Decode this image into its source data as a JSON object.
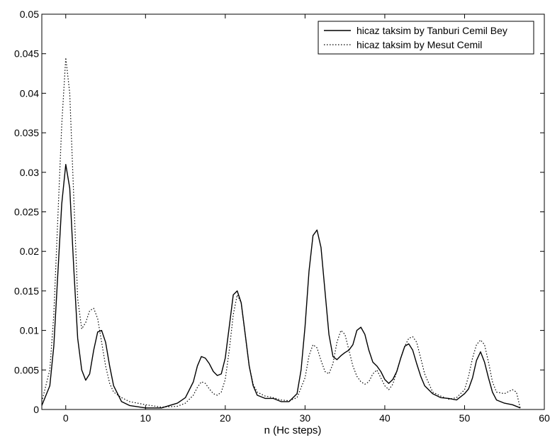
{
  "chart_data": {
    "type": "line",
    "title": "",
    "xlabel": "n (Hc steps)",
    "ylabel": "",
    "xlim": [
      -3,
      60
    ],
    "ylim": [
      0,
      0.05
    ],
    "x_ticks": [
      0,
      10,
      20,
      30,
      40,
      50,
      60
    ],
    "x_tick_labels": [
      "0",
      "10",
      "20",
      "30",
      "40",
      "50",
      "60"
    ],
    "y_ticks": [
      0,
      0.005,
      0.01,
      0.015,
      0.02,
      0.025,
      0.03,
      0.035,
      0.04,
      0.045,
      0.05
    ],
    "y_tick_labels": [
      "0",
      "0.005",
      "0.01",
      "0.015",
      "0.02",
      "0.025",
      "0.03",
      "0.035",
      "0.04",
      "0.045",
      "0.05"
    ],
    "grid": false,
    "legend_position": "top-right",
    "series": [
      {
        "name": "hicaz taksim by Tanburi Cemil Bey",
        "style": "solid",
        "color": "#000000",
        "x": [
          -3,
          -2,
          -1.5,
          -1,
          -0.5,
          0,
          0.5,
          1,
          1.5,
          2,
          2.5,
          3,
          3.5,
          4,
          4.5,
          5,
          5.5,
          6,
          7,
          8,
          10,
          12,
          14,
          15,
          16,
          16.5,
          17,
          17.5,
          18,
          18.5,
          19,
          19.5,
          20,
          20.5,
          21,
          21.5,
          22,
          22.5,
          23,
          23.5,
          24,
          25,
          26,
          27,
          28,
          29,
          29.5,
          30,
          30.5,
          31,
          31.5,
          32,
          32.5,
          33,
          33.5,
          34,
          34.5,
          35,
          35.5,
          36,
          36.5,
          37,
          37.5,
          38,
          38.5,
          39,
          39.5,
          40,
          40.5,
          41,
          41.5,
          42,
          42.5,
          43,
          43.5,
          44,
          44.5,
          45,
          46,
          47,
          48,
          49,
          50,
          50.5,
          51,
          51.5,
          52,
          52.5,
          53,
          53.5,
          54,
          55,
          56,
          57
        ],
        "y": [
          0.0005,
          0.003,
          0.008,
          0.017,
          0.026,
          0.031,
          0.028,
          0.018,
          0.009,
          0.005,
          0.0037,
          0.0045,
          0.0075,
          0.0098,
          0.01,
          0.0085,
          0.0055,
          0.003,
          0.001,
          0.0005,
          0.0002,
          0.0002,
          0.0008,
          0.0015,
          0.0035,
          0.0055,
          0.0067,
          0.0065,
          0.0058,
          0.0048,
          0.0043,
          0.0045,
          0.0065,
          0.0105,
          0.0145,
          0.015,
          0.0135,
          0.0095,
          0.0055,
          0.003,
          0.0018,
          0.0014,
          0.0014,
          0.001,
          0.001,
          0.002,
          0.005,
          0.0105,
          0.0175,
          0.022,
          0.0227,
          0.0205,
          0.015,
          0.0095,
          0.0067,
          0.0063,
          0.0068,
          0.0072,
          0.0075,
          0.0082,
          0.01,
          0.0104,
          0.0095,
          0.0075,
          0.006,
          0.0055,
          0.0048,
          0.0038,
          0.0033,
          0.0038,
          0.0048,
          0.0065,
          0.008,
          0.0083,
          0.0075,
          0.0058,
          0.0042,
          0.003,
          0.002,
          0.0015,
          0.0014,
          0.0012,
          0.002,
          0.0026,
          0.004,
          0.0062,
          0.0073,
          0.006,
          0.004,
          0.0022,
          0.0012,
          0.0008,
          0.0006,
          0.0002
        ]
      },
      {
        "name": "hicaz taksim by Mesut Cemil",
        "style": "dotted",
        "color": "#000000",
        "x": [
          -3,
          -2,
          -1.5,
          -1,
          -0.5,
          0,
          0.5,
          1,
          1.5,
          2,
          2.5,
          3,
          3.5,
          4,
          4.5,
          5,
          5.5,
          6,
          7,
          8,
          10,
          12,
          14,
          15,
          16,
          16.5,
          17,
          17.5,
          18,
          18.5,
          19,
          19.5,
          20,
          20.5,
          21,
          21.5,
          22,
          22.5,
          23,
          23.5,
          24,
          25,
          26,
          27,
          28,
          29,
          30,
          30.5,
          31,
          31.5,
          32,
          32.5,
          33,
          33.5,
          34,
          34.5,
          35,
          35.5,
          36,
          36.5,
          37,
          37.5,
          38,
          38.5,
          39,
          39.5,
          40,
          40.5,
          41,
          41.5,
          42,
          42.5,
          43,
          43.5,
          44,
          44.5,
          45,
          46,
          47,
          48,
          49,
          50,
          50.5,
          51,
          51.5,
          52,
          52.5,
          53,
          53.5,
          54,
          55,
          56,
          56.5,
          57
        ],
        "y": [
          0.001,
          0.005,
          0.012,
          0.024,
          0.036,
          0.0445,
          0.04,
          0.027,
          0.014,
          0.0102,
          0.011,
          0.0125,
          0.0128,
          0.0115,
          0.0085,
          0.0055,
          0.0033,
          0.0022,
          0.0015,
          0.001,
          0.0006,
          0.0003,
          0.0004,
          0.0008,
          0.0018,
          0.0028,
          0.0035,
          0.0033,
          0.0026,
          0.002,
          0.0018,
          0.0022,
          0.0038,
          0.0075,
          0.012,
          0.0145,
          0.0135,
          0.0095,
          0.0055,
          0.0032,
          0.0022,
          0.0017,
          0.0015,
          0.0012,
          0.0011,
          0.0015,
          0.004,
          0.0068,
          0.0082,
          0.0078,
          0.0062,
          0.0048,
          0.0045,
          0.0058,
          0.0085,
          0.01,
          0.0095,
          0.0075,
          0.0055,
          0.0042,
          0.0035,
          0.0032,
          0.0035,
          0.0045,
          0.005,
          0.004,
          0.003,
          0.0025,
          0.0032,
          0.0048,
          0.0065,
          0.008,
          0.009,
          0.0092,
          0.0085,
          0.0065,
          0.0045,
          0.0022,
          0.0017,
          0.0013,
          0.0015,
          0.0025,
          0.0042,
          0.0065,
          0.0082,
          0.0088,
          0.0082,
          0.006,
          0.0035,
          0.0022,
          0.002,
          0.0025,
          0.0022,
          0.0001
        ]
      }
    ]
  }
}
